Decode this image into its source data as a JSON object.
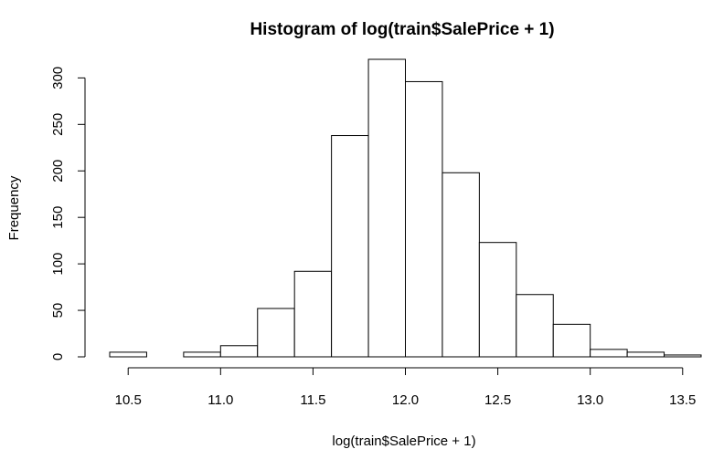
{
  "chart_data": {
    "type": "bar",
    "title": "Histogram of log(train$SalePrice + 1)",
    "xlabel": "log(train$SalePrice + 1)",
    "ylabel": "Frequency",
    "bins": [
      {
        "start": 10.4,
        "end": 10.6,
        "count": 5
      },
      {
        "start": 10.6,
        "end": 10.8,
        "count": 0
      },
      {
        "start": 10.8,
        "end": 11.0,
        "count": 5
      },
      {
        "start": 11.0,
        "end": 11.2,
        "count": 12
      },
      {
        "start": 11.2,
        "end": 11.4,
        "count": 52
      },
      {
        "start": 11.4,
        "end": 11.6,
        "count": 92
      },
      {
        "start": 11.6,
        "end": 11.8,
        "count": 238
      },
      {
        "start": 11.8,
        "end": 12.0,
        "count": 320
      },
      {
        "start": 12.0,
        "end": 12.2,
        "count": 296
      },
      {
        "start": 12.2,
        "end": 12.4,
        "count": 198
      },
      {
        "start": 12.4,
        "end": 12.6,
        "count": 123
      },
      {
        "start": 12.6,
        "end": 12.8,
        "count": 67
      },
      {
        "start": 12.8,
        "end": 13.0,
        "count": 35
      },
      {
        "start": 13.0,
        "end": 13.2,
        "count": 8
      },
      {
        "start": 13.2,
        "end": 13.4,
        "count": 5
      },
      {
        "start": 13.4,
        "end": 13.6,
        "count": 2
      }
    ],
    "xticks": [
      10.5,
      11.0,
      11.5,
      12.0,
      12.5,
      13.0,
      13.5
    ],
    "xtick_labels": [
      "10.5",
      "11.0",
      "11.5",
      "12.0",
      "12.5",
      "13.0",
      "13.5"
    ],
    "yticks": [
      0,
      50,
      100,
      150,
      200,
      250,
      300
    ],
    "ytick_labels": [
      "0",
      "50",
      "100",
      "150",
      "200",
      "250",
      "300"
    ],
    "xlim": [
      10.4,
      13.6
    ],
    "ylim": [
      0,
      320
    ],
    "grid": false,
    "legend": "none",
    "colors": {
      "bar_fill": "#ffffff",
      "bar_stroke": "#000000"
    }
  }
}
